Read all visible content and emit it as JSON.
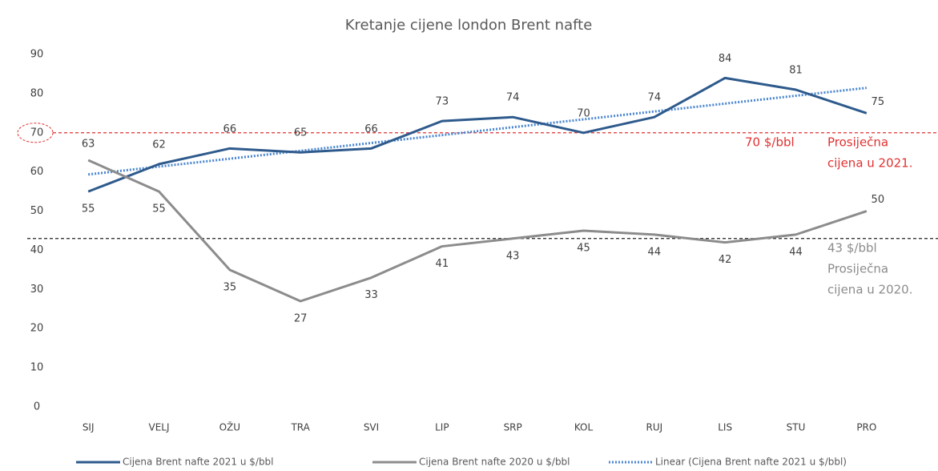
{
  "chart_data": {
    "type": "line",
    "title": "Kretanje cijene london Brent nafte",
    "categories": [
      "SIJ",
      "VELJ",
      "OŽU",
      "TRA",
      "SVI",
      "LIP",
      "SRP",
      "KOL",
      "RUJ",
      "LIS",
      "STU",
      "PRO"
    ],
    "series": [
      {
        "name": "Cijena Brent nafte 2021 u $/bbl",
        "color": "#2e5a8c",
        "values": [
          55,
          62,
          66,
          65,
          66,
          73,
          74,
          70,
          74,
          84,
          81,
          75
        ]
      },
      {
        "name": "Cijena Brent nafte 2020 u $/bbl",
        "color": "#8c8c8c",
        "values": [
          63,
          55,
          35,
          27,
          33,
          41,
          43,
          45,
          44,
          42,
          44,
          50
        ]
      }
    ],
    "trendline": {
      "name": "Linear (Cijena Brent nafte 2021 u $/bbl)",
      "color": "#4a86d0",
      "series": 0
    },
    "reference_lines": [
      {
        "value": 70,
        "label": "70 $/bbl",
        "text": [
          "Prosiječna",
          "cijena u 2021."
        ],
        "color": "#e03030"
      },
      {
        "value": 43,
        "label": "43 $/bbl",
        "text": [
          "Prosiječna",
          "cijena u 2020."
        ],
        "color": "#222222"
      }
    ],
    "ylim": [
      0,
      90
    ],
    "yticks": [
      0,
      10,
      20,
      30,
      40,
      50,
      60,
      70,
      80,
      90
    ],
    "grid": false,
    "legend": "bottom"
  }
}
